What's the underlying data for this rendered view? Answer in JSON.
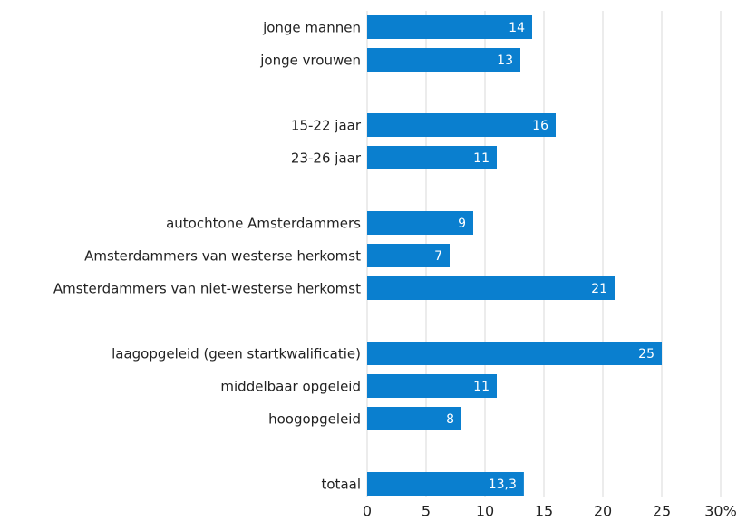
{
  "chart_data": {
    "type": "bar",
    "orientation": "horizontal",
    "categories": [
      "jonge mannen",
      "jonge vrouwen",
      null,
      "15-22 jaar",
      "23-26 jaar",
      null,
      "autochtone Amsterdammers",
      "Amsterdammers van westerse herkomst",
      "Amsterdammers van niet-westerse herkomst",
      null,
      "laagopgeleid (geen startkwalificatie)",
      "middelbaar opgeleid",
      "hoogopgeleid",
      null,
      "totaal"
    ],
    "values": [
      14,
      13,
      null,
      16,
      11,
      null,
      9,
      7,
      21,
      null,
      25,
      11,
      8,
      null,
      13.3
    ],
    "value_labels": [
      "14",
      "13",
      null,
      "16",
      "11",
      null,
      "9",
      "7",
      "21",
      null,
      "25",
      "11",
      "8",
      null,
      "13,3"
    ],
    "color": "#0a7fcf",
    "xlim": [
      0,
      30
    ],
    "xticks": [
      0,
      5,
      10,
      15,
      20,
      25,
      {
        "value": 30,
        "label": "30%"
      }
    ],
    "grid": true
  }
}
